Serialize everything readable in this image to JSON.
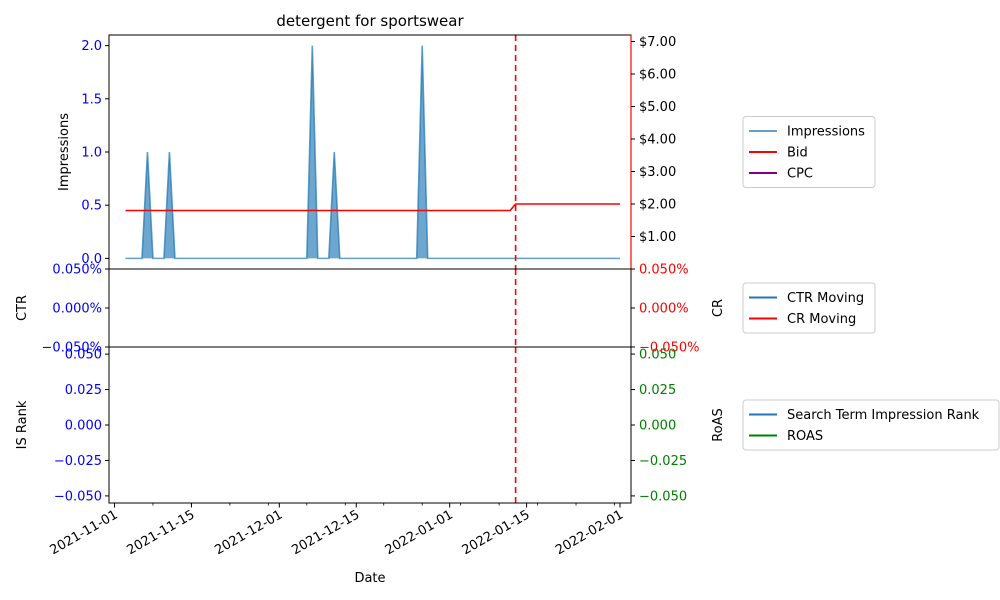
{
  "chart_data": {
    "type": "line",
    "title": "detergent for sportswear",
    "xlabel": "Date",
    "x_range": [
      "2021-10-31",
      "2022-02-03"
    ],
    "x_ticks": [
      "2021-11-01",
      "2021-11-15",
      "2021-12-01",
      "2021-12-15",
      "2022-01-01",
      "2022-01-15",
      "2022-02-01"
    ],
    "marker_date": "2022-01-13",
    "marker_color": "#ff0000",
    "panels": [
      {
        "left_axis": {
          "label": "Impressions",
          "color": "#0000ff",
          "ylim": [
            -0.1,
            2.1
          ],
          "ticks": [
            "0.0",
            "0.5",
            "1.0",
            "1.5",
            "2.0"
          ],
          "tick_values": [
            0,
            0.5,
            1.0,
            1.5,
            2.0
          ]
        },
        "right_axis": {
          "label": "",
          "color": "#ff0000",
          "ylim": [
            0,
            7.2
          ],
          "ticks": [
            "$1.00",
            "$2.00",
            "$3.00",
            "$4.00",
            "$5.00",
            "$6.00",
            "$7.00"
          ],
          "tick_values": [
            1,
            2,
            3,
            4,
            5,
            6,
            7
          ]
        },
        "series": [
          {
            "name": "Impressions",
            "axis": "left",
            "color": "#1f77b4",
            "fill": true,
            "points": [
              [
                "2021-11-03",
                0
              ],
              [
                "2021-11-05",
                0
              ],
              [
                "2021-11-06",
                0
              ],
              [
                "2021-11-07",
                1
              ],
              [
                "2021-11-08",
                0
              ],
              [
                "2021-11-09",
                0
              ],
              [
                "2021-11-10",
                0
              ],
              [
                "2021-11-11",
                1
              ],
              [
                "2021-11-12",
                0
              ],
              [
                "2021-12-05",
                0
              ],
              [
                "2021-12-06",
                0
              ],
              [
                "2021-12-07",
                2
              ],
              [
                "2021-12-08",
                0
              ],
              [
                "2021-12-09",
                0
              ],
              [
                "2021-12-10",
                0
              ],
              [
                "2021-12-11",
                1
              ],
              [
                "2021-12-12",
                0
              ],
              [
                "2021-12-25",
                0
              ],
              [
                "2021-12-26",
                0
              ],
              [
                "2021-12-27",
                2
              ],
              [
                "2021-12-28",
                0
              ],
              [
                "2022-02-01",
                0
              ]
            ]
          },
          {
            "name": "Bid",
            "axis": "right",
            "color": "#ff0000",
            "points": [
              [
                "2021-11-03",
                1.8
              ],
              [
                "2022-01-12",
                1.8
              ],
              [
                "2022-01-13",
                2.0
              ],
              [
                "2022-02-01",
                2.0
              ]
            ]
          },
          {
            "name": "CPC",
            "axis": "right",
            "color": "#800080",
            "points": []
          }
        ]
      },
      {
        "left_axis": {
          "label": "CTR",
          "color": "#0000ff",
          "ylim": [
            -0.05,
            0.05
          ],
          "ticks": [
            "−0.050%",
            "0.000%",
            "0.050%"
          ],
          "tick_values": [
            -0.05,
            0,
            0.05
          ]
        },
        "right_axis": {
          "label": "CR",
          "color": "#ff0000",
          "ylim": [
            -0.05,
            0.05
          ],
          "ticks": [
            "−0.050%",
            "0.000%",
            "0.050%"
          ],
          "tick_values": [
            -0.05,
            0,
            0.05
          ]
        },
        "series": [
          {
            "name": "CTR Moving",
            "axis": "left",
            "color": "#1f77b4",
            "points": []
          },
          {
            "name": "CR Moving",
            "axis": "right",
            "color": "#ff0000",
            "points": []
          }
        ]
      },
      {
        "left_axis": {
          "label": "IS Rank",
          "color": "#0000ff",
          "ylim": [
            -0.055,
            0.055
          ],
          "ticks": [
            "−0.050",
            "−0.025",
            "0.000",
            "0.025",
            "0.050"
          ],
          "tick_values": [
            -0.05,
            -0.025,
            0,
            0.025,
            0.05
          ]
        },
        "right_axis": {
          "label": "RoAS",
          "color": "#008000",
          "ylim": [
            -0.055,
            0.055
          ],
          "ticks": [
            "−0.050",
            "−0.025",
            "0.000",
            "0.025",
            "0.050"
          ],
          "tick_values": [
            -0.05,
            -0.025,
            0,
            0.025,
            0.05
          ]
        },
        "series": [
          {
            "name": "Search Term Impression Rank",
            "axis": "left",
            "color": "#1f77b4",
            "points": []
          },
          {
            "name": "ROAS",
            "axis": "right",
            "color": "#008000",
            "points": []
          }
        ]
      }
    ]
  }
}
